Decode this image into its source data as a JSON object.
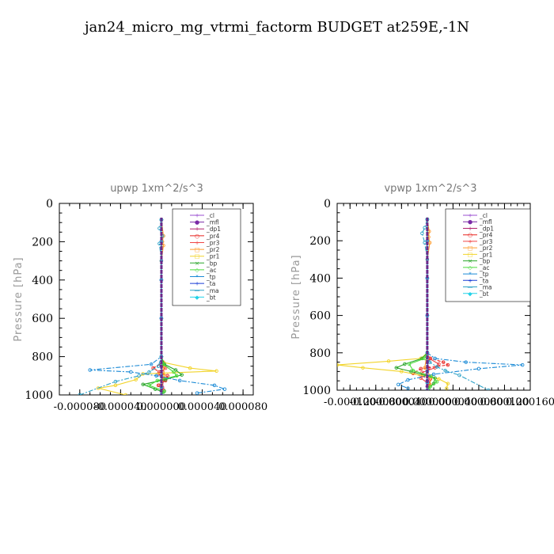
{
  "figure": {
    "title": "jan24_micro_mg_vtrmi_factorm  BUDGET at259E,-1N"
  },
  "legend": {
    "entries": [
      {
        "label": "_cl",
        "color": "#9b4fd1",
        "marker": "+"
      },
      {
        "label": "_mfl",
        "color": "#7a2aa6",
        "marker": "●"
      },
      {
        "label": "_dp1",
        "color": "#b0206b",
        "marker": "+"
      },
      {
        "label": "_pr4",
        "color": "#e8231f",
        "marker": "○"
      },
      {
        "label": "_pr3",
        "color": "#f04545",
        "marker": "+"
      },
      {
        "label": "_pr2",
        "color": "#ff9d2e",
        "marker": "□"
      },
      {
        "label": "_pr1",
        "color": "#f2d42a",
        "marker": "□"
      },
      {
        "label": "_bp",
        "color": "#2aa52a",
        "marker": "×"
      },
      {
        "label": "_ac",
        "color": "#4ddc3f",
        "marker": "◇"
      },
      {
        "label": "_tp",
        "color": "#1a8ad6",
        "marker": "*"
      },
      {
        "label": "_ta",
        "color": "#1c3fd6",
        "marker": "+"
      },
      {
        "label": "_ma",
        "color": "#2fa3c8",
        "marker": "—"
      },
      {
        "label": "_bt",
        "color": "#21d2e8",
        "marker": "◆"
      }
    ]
  },
  "chart_data": [
    {
      "type": "line",
      "title": "upwp    1xm^2/s^3",
      "xlabel": "",
      "ylabel": "Pressure [hPa]",
      "xlim": [
        -0.0001,
        9e-05
      ],
      "ylim": [
        1000,
        0
      ],
      "x_ticks": [
        -8e-05,
        -4e-05,
        0,
        4e-05,
        8e-05
      ],
      "x_tick_labels": [
        "-0.000080",
        "-0.000040",
        "0.000000",
        "0.000040",
        "0.000080"
      ],
      "y_ticks": [
        0,
        200,
        400,
        600,
        800,
        1000
      ],
      "y_tick_labels": [
        "0",
        "200",
        "400",
        "600",
        "800",
        "1000"
      ],
      "series": [
        {
          "name": "_cl",
          "x": [
            0,
            0,
            0,
            0,
            0,
            0,
            0,
            0,
            0,
            0
          ],
          "y": [
            85,
            200,
            400,
            600,
            800,
            850,
            900,
            950,
            980,
            1000
          ]
        },
        {
          "name": "_mfl",
          "x": [
            0,
            0,
            0,
            0,
            0,
            0,
            0,
            0,
            0,
            0
          ],
          "y": [
            85,
            200,
            400,
            600,
            800,
            850,
            900,
            950,
            980,
            1000
          ]
        },
        {
          "name": "_dp1",
          "x": [
            0,
            0,
            0,
            0,
            0,
            0,
            1e-06,
            2e-06,
            1e-06,
            0
          ],
          "y": [
            85,
            200,
            400,
            600,
            800,
            840,
            880,
            920,
            960,
            1000
          ]
        },
        {
          "name": "_pr4",
          "x": [
            0,
            0,
            2e-06,
            -8e-06,
            -2e-06,
            6e-06,
            4e-06,
            -3e-06,
            2e-06,
            0
          ],
          "y": [
            85,
            800,
            830,
            860,
            880,
            900,
            925,
            950,
            975,
            1000
          ]
        },
        {
          "name": "_pr3",
          "x": [
            0,
            0,
            2e-06,
            4e-06,
            -3e-06,
            3e-06,
            -2e-06,
            1e-06,
            0
          ],
          "y": [
            85,
            800,
            830,
            860,
            890,
            920,
            950,
            980,
            1000
          ]
        },
        {
          "name": "_pr2",
          "x": [
            0,
            2e-06,
            1e-06,
            2e-06,
            0,
            0,
            2e-06,
            3e-06,
            0,
            0
          ],
          "y": [
            85,
            170,
            200,
            220,
            300,
            800,
            850,
            900,
            950,
            1000
          ]
        },
        {
          "name": "_pr1",
          "x": [
            0,
            0,
            2e-06,
            2.8e-05,
            5.4e-05,
            -1.8e-05,
            -2.5e-05,
            -4.5e-05,
            -6.2e-05,
            -3.5e-05
          ],
          "y": [
            85,
            800,
            830,
            860,
            875,
            890,
            920,
            950,
            965,
            1000
          ]
        },
        {
          "name": "_bp",
          "x": [
            0,
            0,
            3e-06,
            1.4e-05,
            2e-05,
            4e-06,
            -1.8e-05,
            -6e-06,
            2e-06,
            0
          ],
          "y": [
            85,
            800,
            840,
            870,
            895,
            920,
            945,
            970,
            985,
            1000
          ]
        },
        {
          "name": "_ac",
          "x": [
            0,
            0,
            2e-06,
            1.2e-05,
            1.5e-05,
            -4e-06,
            -1.2e-05,
            3e-06,
            0
          ],
          "y": [
            85,
            800,
            840,
            880,
            900,
            925,
            950,
            980,
            1000
          ]
        },
        {
          "name": "_tp",
          "x": [
            0,
            0,
            -1e-05,
            -7e-05,
            -3e-05,
            -5e-06,
            1.8e-05,
            5.2e-05,
            6.2e-05,
            3.5e-05
          ],
          "y": [
            85,
            800,
            840,
            870,
            880,
            900,
            925,
            950,
            970,
            990
          ]
        },
        {
          "name": "_ta",
          "x": [
            0,
            0,
            0,
            0,
            0,
            0,
            0,
            0
          ],
          "y": [
            85,
            200,
            400,
            600,
            800,
            900,
            960,
            1000
          ]
        },
        {
          "name": "_ma",
          "x": [
            0,
            -2e-06,
            1e-06,
            -2e-06,
            0,
            0,
            -3e-06,
            -1.2e-05,
            -2.2e-05,
            -4.5e-05,
            -8e-05
          ],
          "y": [
            85,
            130,
            170,
            210,
            300,
            800,
            850,
            880,
            900,
            930,
            1000
          ]
        },
        {
          "name": "_bt",
          "x": [
            0,
            0,
            0,
            0,
            0,
            0,
            0,
            0
          ],
          "y": [
            85,
            200,
            400,
            600,
            800,
            900,
            960,
            1000
          ]
        }
      ]
    },
    {
      "type": "line",
      "title": "vpwp    1xm^2/s^3",
      "xlabel": "",
      "ylabel": "Pressure [hPa]",
      "xlim": [
        -0.00014,
        0.00016
      ],
      "ylim": [
        1000,
        0
      ],
      "x_ticks": [
        -0.00012,
        -8e-05,
        -4e-05,
        0,
        4e-05,
        8e-05,
        0.00012,
        0.00016
      ],
      "x_tick_labels": [
        "-0.000120",
        "-0.000080",
        "-0.000040",
        "0.000000",
        "0.000040",
        "0.000080",
        "0.000120",
        "0.000160"
      ],
      "y_ticks": [
        0,
        200,
        400,
        600,
        800,
        1000
      ],
      "y_tick_labels": [
        "0",
        "200",
        "400",
        "600",
        "800",
        "1000"
      ],
      "series": [
        {
          "name": "_cl",
          "x": [
            0,
            0,
            0,
            0,
            0,
            0,
            0,
            0,
            0,
            0
          ],
          "y": [
            85,
            200,
            400,
            600,
            800,
            850,
            900,
            950,
            980,
            1000
          ]
        },
        {
          "name": "_mfl",
          "x": [
            0,
            0,
            0,
            0,
            0,
            0,
            0,
            0,
            0,
            0
          ],
          "y": [
            85,
            200,
            400,
            600,
            800,
            850,
            900,
            950,
            980,
            1000
          ]
        },
        {
          "name": "_dp1",
          "x": [
            0,
            0,
            0,
            0,
            0,
            0,
            2e-06,
            -2e-06,
            1e-06,
            0
          ],
          "y": [
            85,
            200,
            400,
            600,
            800,
            840,
            880,
            920,
            960,
            1000
          ]
        },
        {
          "name": "_pr4",
          "x": [
            0,
            0,
            5e-06,
            2.5e-05,
            3.2e-05,
            -1e-05,
            -2.2e-05,
            5e-06,
            3e-06,
            0
          ],
          "y": [
            85,
            800,
            830,
            850,
            865,
            885,
            910,
            940,
            975,
            1000
          ]
        },
        {
          "name": "_pr3",
          "x": [
            0,
            0,
            3e-06,
            1.8e-05,
            1.2e-05,
            -8e-06,
            -1e-05,
            4e-06,
            0
          ],
          "y": [
            85,
            800,
            830,
            860,
            880,
            905,
            935,
            970,
            1000
          ]
        },
        {
          "name": "_pr2",
          "x": [
            0,
            3e-06,
            2e-06,
            4e-06,
            0,
            0,
            -4e-06,
            6e-06,
            4e-06,
            0
          ],
          "y": [
            85,
            150,
            180,
            210,
            300,
            800,
            880,
            930,
            970,
            1000
          ]
        },
        {
          "name": "_pr1",
          "x": [
            0,
            0,
            -1e-05,
            -6e-05,
            -0.00014,
            -0.0001,
            -4e-05,
            1.8e-05,
            3.2e-05,
            3e-05
          ],
          "y": [
            85,
            800,
            830,
            845,
            865,
            880,
            900,
            940,
            965,
            990
          ]
        },
        {
          "name": "_bp",
          "x": [
            0,
            0,
            -8e-06,
            -3.5e-05,
            -4.8e-05,
            -2.5e-05,
            1.2e-05,
            1e-05,
            2e-06,
            0
          ],
          "y": [
            85,
            800,
            830,
            860,
            880,
            900,
            935,
            965,
            990,
            1000
          ]
        },
        {
          "name": "_ac",
          "x": [
            0,
            0,
            -4e-06,
            -2.8e-05,
            -2.2e-05,
            6e-06,
            1.5e-05,
            5e-06,
            0
          ],
          "y": [
            85,
            800,
            830,
            860,
            895,
            925,
            955,
            980,
            1000
          ]
        },
        {
          "name": "_tp",
          "x": [
            0,
            0,
            1.2e-05,
            6e-05,
            0.000148,
            8e-05,
            1e-05,
            -3e-05,
            -4.5e-05,
            -3e-05
          ],
          "y": [
            85,
            800,
            830,
            850,
            865,
            885,
            915,
            945,
            970,
            990
          ]
        },
        {
          "name": "_ta",
          "x": [
            0,
            0,
            0,
            0,
            0,
            0,
            0,
            0
          ],
          "y": [
            85,
            200,
            400,
            600,
            800,
            900,
            960,
            1000
          ]
        },
        {
          "name": "_ma",
          "x": [
            0,
            -4e-06,
            -8e-06,
            -4e-06,
            0,
            0,
            4e-06,
            1.5e-05,
            2.8e-05,
            5e-05,
            9.5e-05
          ],
          "y": [
            85,
            130,
            160,
            210,
            300,
            800,
            850,
            875,
            895,
            920,
            1000
          ]
        },
        {
          "name": "_bt",
          "x": [
            0,
            0,
            0,
            0,
            0,
            0,
            0,
            0
          ],
          "y": [
            85,
            200,
            400,
            600,
            800,
            900,
            960,
            1000
          ]
        }
      ]
    }
  ]
}
